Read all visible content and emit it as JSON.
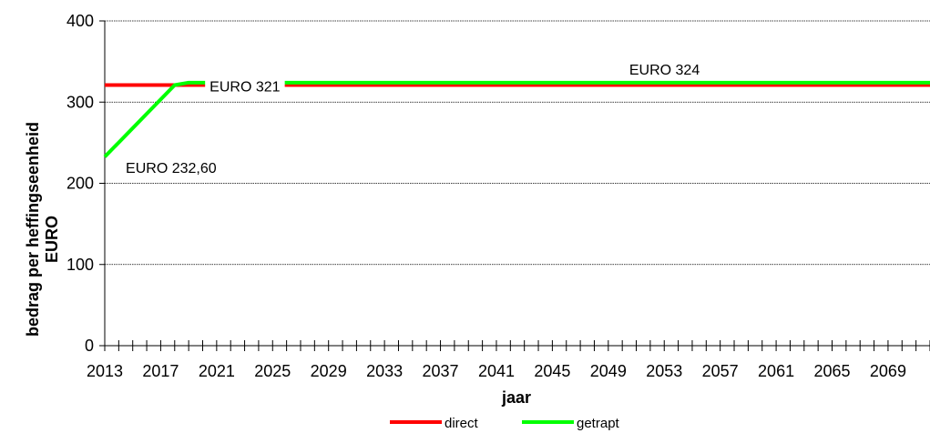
{
  "chart_data": {
    "type": "line",
    "xlabel": "jaar",
    "ylabel_lines": [
      "bedrag per heffingseenheid",
      "EURO"
    ],
    "xlim": [
      2013,
      2072
    ],
    "ylim": [
      0,
      400
    ],
    "y_ticks": [
      0,
      100,
      200,
      300,
      400
    ],
    "x_tick_labels": [
      "2013",
      "2017",
      "2021",
      "2025",
      "2029",
      "2033",
      "2037",
      "2041",
      "2045",
      "2049",
      "2053",
      "2057",
      "2061",
      "2065",
      "2069"
    ],
    "grid": "horizontal",
    "legend_position": "bottom",
    "series": [
      {
        "name": "direct",
        "color": "#ff0000",
        "x": [
          2013,
          2072
        ],
        "y": [
          321,
          321
        ]
      },
      {
        "name": "getrapt",
        "color": "#00ff00",
        "x": [
          2013,
          2018,
          2019,
          2072
        ],
        "y": [
          232.6,
          321,
          324,
          324
        ]
      }
    ],
    "annotations": [
      {
        "text": "EURO 232,60",
        "x": 2014.5,
        "y": 213
      },
      {
        "text": "EURO 321",
        "x": 2020.5,
        "y": 313
      },
      {
        "text": "EURO 324",
        "x": 2050.5,
        "y": 334
      }
    ]
  }
}
